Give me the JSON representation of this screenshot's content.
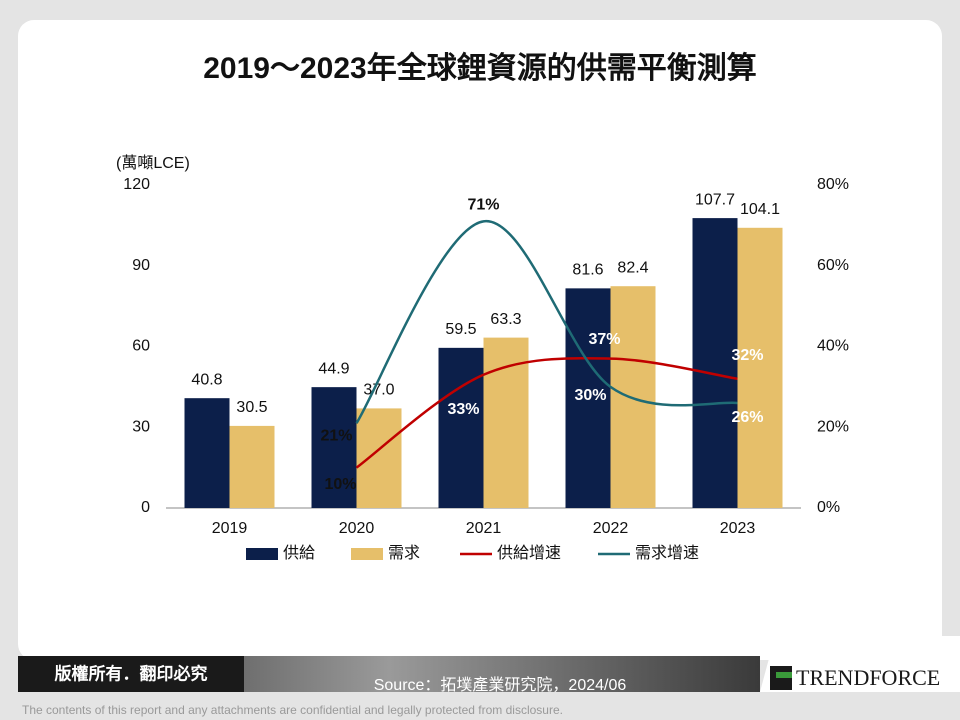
{
  "chart_data": {
    "type": "bar",
    "title": "2019～2023年全球鋰資源的供需平衡測算",
    "y_label": "(萬噸LCE)",
    "categories": [
      "2019",
      "2020",
      "2021",
      "2022",
      "2023"
    ],
    "series": [
      {
        "name": "供給",
        "color": "#0c1f4a",
        "values": [
          40.8,
          44.9,
          59.5,
          81.6,
          107.7
        ]
      },
      {
        "name": "需求",
        "color": "#e6bf6a",
        "values": [
          30.5,
          37.0,
          63.3,
          82.4,
          104.1
        ],
        "value_labels": [
          "30.5",
          "37.0",
          "63.3",
          "82.4",
          "104.1"
        ]
      },
      {
        "name": "供給增速",
        "color": "#c00000",
        "type": "line",
        "axis": "y2",
        "values": [
          null,
          10,
          33,
          37,
          32
        ],
        "value_labels": [
          null,
          "10%",
          "33%",
          "37%",
          "32%"
        ]
      },
      {
        "name": "需求增速",
        "color": "#1f6b75",
        "type": "line",
        "axis": "y2",
        "values": [
          null,
          21,
          71,
          30,
          26
        ],
        "value_labels": [
          null,
          "21%",
          "71%",
          "30%",
          "26%"
        ]
      }
    ],
    "ylim": [
      0,
      120
    ],
    "yticks": [
      0,
      30,
      60,
      90,
      120
    ],
    "y2lim": [
      0,
      80
    ],
    "y2ticks": [
      {
        "value": 0,
        "label": "0%"
      },
      {
        "value": 20,
        "label": "20%"
      },
      {
        "value": 40,
        "label": "40%"
      },
      {
        "value": 60,
        "label": "60%"
      },
      {
        "value": 80,
        "label": "80%"
      }
    ],
    "grid": false,
    "legend": "bottom"
  },
  "footer": {
    "rights": "版權所有．翻印必究",
    "source": "Source：拓墣產業研究院，2024/06",
    "logo": "TRENDFORCE",
    "disclaimer": "The contents of this report and any attachments are confidential and legally protected from disclosure."
  }
}
